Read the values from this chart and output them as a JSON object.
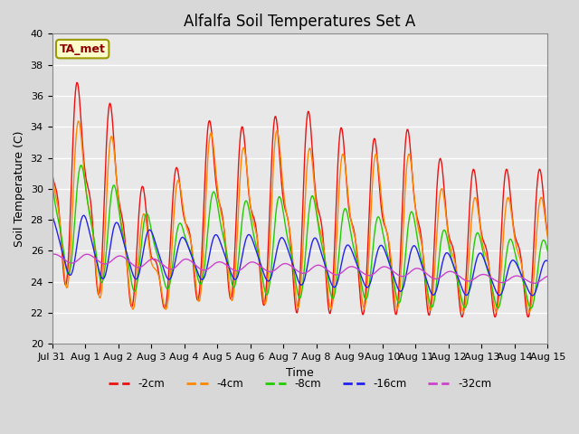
{
  "title": "Alfalfa Soil Temperatures Set A",
  "xlabel": "Time",
  "ylabel": "Soil Temperature (C)",
  "ylim": [
    20,
    40
  ],
  "yticks": [
    20,
    22,
    24,
    26,
    28,
    30,
    32,
    34,
    36,
    38,
    40
  ],
  "colors": {
    "-2cm": "#ee1111",
    "-4cm": "#ff8800",
    "-8cm": "#22cc00",
    "-16cm": "#2222ee",
    "-32cm": "#cc44cc"
  },
  "legend_labels": [
    "-2cm",
    "-4cm",
    "-8cm",
    "-16cm",
    "-32cm"
  ],
  "annotation_text": "TA_met",
  "bg_color": "#e8e8e8",
  "grid_color": "#ffffff",
  "title_fontsize": 12,
  "axis_fontsize": 9,
  "tick_fontsize": 8,
  "x_tick_labels": [
    "Jul 31",
    "Aug 1",
    "Aug 2",
    "Aug 3",
    "Aug 4",
    "Aug 5",
    "Aug 6",
    "Aug 7",
    "Aug 8",
    "Aug 9",
    "Aug 10",
    "Aug 11",
    "Aug 12",
    "Aug 13",
    "Aug 14",
    "Aug 15"
  ]
}
